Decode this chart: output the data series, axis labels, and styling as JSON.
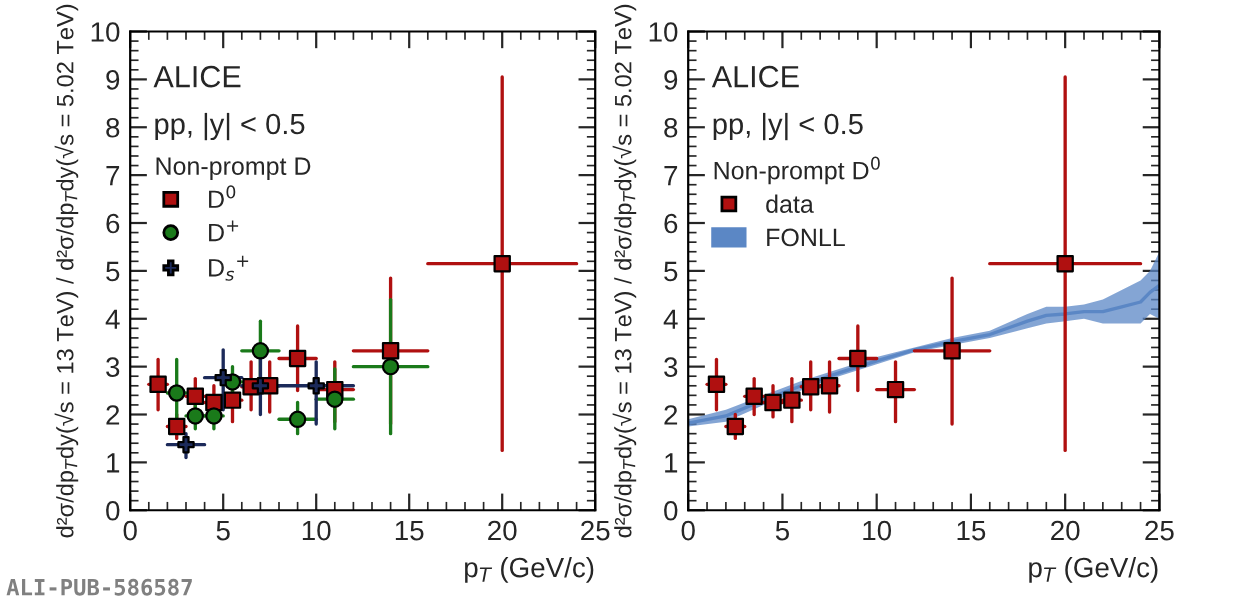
{
  "chart_data": [
    {
      "type": "scatter",
      "xlabel": "p$_{T}$ (GeV/c)",
      "ylabel": "d²σ/dp$_{T}$dy(√s = 13 TeV) / d²σ/dp$_{T}$dy(√s = 5.02 TeV)",
      "legend_title": "Non-prompt D",
      "annotations": [
        "ALICE",
        "pp, |y| < 0.5",
        "ALI-PUB-586587"
      ],
      "xlim": [
        0,
        25
      ],
      "ylim": [
        0,
        10
      ],
      "xticks": [
        0,
        5,
        10,
        15,
        20,
        25
      ],
      "yticks": [
        0,
        1,
        2,
        3,
        4,
        5,
        6,
        7,
        8,
        9,
        10
      ],
      "grid": false,
      "legend": "top left",
      "series": [
        {
          "name": "D$^{0}$",
          "color": "#b01010",
          "marker": "square",
          "x": [
            1.5,
            2.5,
            3.5,
            4.5,
            5.5,
            6.5,
            7.5,
            9,
            11,
            14,
            20
          ],
          "values": [
            2.63,
            1.75,
            2.38,
            2.25,
            2.3,
            2.58,
            2.6,
            3.17,
            2.52,
            3.33,
            5.15
          ],
          "errors": [
            [
              2.1,
              3.15
            ],
            [
              1.5,
              2.0
            ],
            [
              2.0,
              2.75
            ],
            [
              1.95,
              2.6
            ],
            [
              1.85,
              2.75
            ],
            [
              2.1,
              3.1
            ],
            [
              2.05,
              3.1
            ],
            [
              2.5,
              3.85
            ],
            [
              1.85,
              3.1
            ],
            [
              1.8,
              4.85
            ],
            [
              1.25,
              9.05
            ]
          ],
          "xerrors": [
            [
              1,
              2
            ],
            [
              2,
              3
            ],
            [
              3,
              4
            ],
            [
              4,
              5
            ],
            [
              5,
              6
            ],
            [
              6,
              7
            ],
            [
              7,
              8
            ],
            [
              8,
              10
            ],
            [
              10,
              12
            ],
            [
              12,
              16
            ],
            [
              16,
              24
            ]
          ]
        },
        {
          "name": "D$^{+}$",
          "color": "#1a7a1a",
          "marker": "circle",
          "x": [
            2.5,
            3.5,
            4.5,
            5.5,
            7,
            9,
            11,
            14
          ],
          "values": [
            2.45,
            1.97,
            1.97,
            2.68,
            3.33,
            1.9,
            2.32,
            3.0
          ],
          "errors": [
            [
              1.8,
              3.15
            ],
            [
              1.7,
              2.3
            ],
            [
              1.7,
              2.3
            ],
            [
              2.3,
              3.0
            ],
            [
              2.8,
              3.95
            ],
            [
              1.6,
              2.25
            ],
            [
              1.7,
              2.95
            ],
            [
              1.6,
              4.4
            ]
          ],
          "xerrors": [
            [
              2,
              3
            ],
            [
              3,
              4
            ],
            [
              4,
              5
            ],
            [
              5,
              6
            ],
            [
              6,
              8
            ],
            [
              8,
              10
            ],
            [
              10,
              12
            ],
            [
              12,
              16
            ]
          ]
        },
        {
          "name": "D$_{s}$$^{+}$",
          "color": "#1c2a5a",
          "marker": "cross",
          "x": [
            3,
            5,
            7,
            10
          ],
          "values": [
            1.37,
            2.77,
            2.6,
            2.6
          ],
          "errors": [
            [
              1.1,
              1.6
            ],
            [
              2.1,
              3.35
            ],
            [
              2.0,
              3.2
            ],
            [
              1.8,
              3.1
            ]
          ],
          "xerrors": [
            [
              2,
              4
            ],
            [
              4,
              6
            ],
            [
              6,
              8
            ],
            [
              8,
              12
            ]
          ]
        }
      ]
    },
    {
      "type": "scatter",
      "xlabel": "p$_{T}$ (GeV/c)",
      "ylabel": "d²σ/dp$_{T}$dy(√s = 13 TeV) / d²σ/dp$_{T}$dy(√s = 5.02 TeV)",
      "legend_title": "Non-prompt D$^{0}$",
      "annotations": [
        "ALICE",
        "pp, |y| < 0.5"
      ],
      "xlim": [
        0,
        25
      ],
      "ylim": [
        0,
        10
      ],
      "xticks": [
        0,
        5,
        10,
        15,
        20,
        25
      ],
      "yticks": [
        0,
        1,
        2,
        3,
        4,
        5,
        6,
        7,
        8,
        9,
        10
      ],
      "grid": false,
      "legend": "top left",
      "series": [
        {
          "name": "FONLL",
          "type": "line",
          "color": "#5b87c5",
          "x": [
            0,
            2,
            4,
            6,
            8,
            10,
            12,
            14,
            16,
            18,
            19,
            20,
            21,
            22,
            23,
            24,
            24.5,
            25
          ],
          "values": [
            1.82,
            1.97,
            2.3,
            2.6,
            2.87,
            3.12,
            3.35,
            3.52,
            3.67,
            3.95,
            4.07,
            4.1,
            4.15,
            4.15,
            4.25,
            4.35,
            4.55,
            4.7
          ],
          "lower": [
            1.75,
            1.85,
            2.2,
            2.5,
            2.8,
            3.05,
            3.3,
            3.45,
            3.6,
            3.8,
            3.9,
            3.95,
            4.0,
            3.9,
            3.9,
            3.9,
            4.1,
            4.0
          ],
          "upper": [
            1.9,
            2.1,
            2.4,
            2.7,
            2.95,
            3.2,
            3.4,
            3.6,
            3.75,
            4.1,
            4.25,
            4.25,
            4.3,
            4.4,
            4.6,
            4.8,
            5.0,
            5.4
          ]
        },
        {
          "name": "data",
          "color": "#b01010",
          "marker": "square",
          "x": [
            1.5,
            2.5,
            3.5,
            4.5,
            5.5,
            6.5,
            7.5,
            9,
            11,
            14,
            20
          ],
          "values": [
            2.63,
            1.75,
            2.38,
            2.25,
            2.3,
            2.58,
            2.6,
            3.17,
            2.52,
            3.33,
            5.15
          ],
          "errors": [
            [
              2.1,
              3.15
            ],
            [
              1.5,
              2.0
            ],
            [
              2.0,
              2.75
            ],
            [
              1.95,
              2.6
            ],
            [
              1.85,
              2.75
            ],
            [
              2.1,
              3.1
            ],
            [
              2.05,
              3.1
            ],
            [
              2.5,
              3.85
            ],
            [
              1.85,
              3.1
            ],
            [
              1.8,
              4.85
            ],
            [
              1.25,
              9.05
            ]
          ],
          "xerrors": [
            [
              1,
              2
            ],
            [
              2,
              3
            ],
            [
              3,
              4
            ],
            [
              4,
              5
            ],
            [
              5,
              6
            ],
            [
              6,
              7
            ],
            [
              7,
              8
            ],
            [
              8,
              10
            ],
            [
              10,
              12
            ],
            [
              12,
              16
            ],
            [
              16,
              24
            ]
          ]
        }
      ]
    }
  ]
}
